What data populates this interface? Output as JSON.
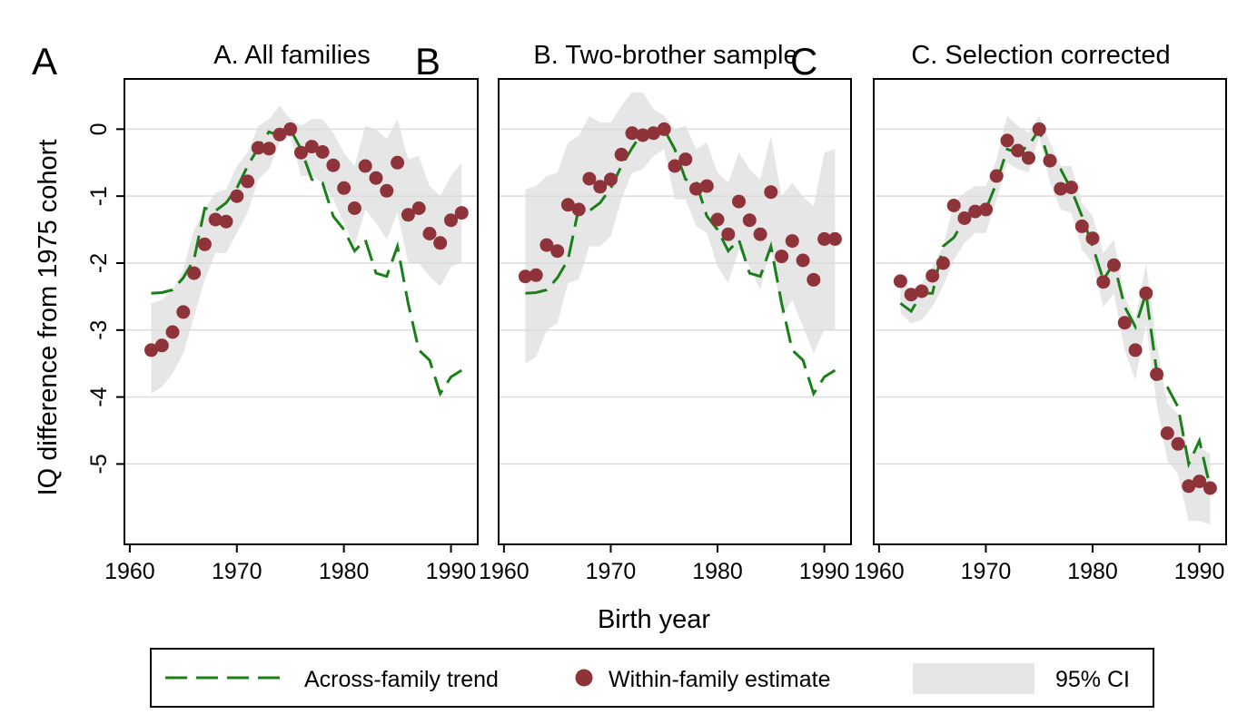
{
  "figure": {
    "ylabel": "IQ difference from 1975 cohort",
    "xlabel": "Birth year",
    "ylim": [
      -6.2,
      0.75
    ],
    "xlim": [
      1959.5,
      1992.5
    ],
    "yticks": [
      0,
      -1,
      -2,
      -3,
      -4,
      -5
    ],
    "ytick_labels": [
      "0",
      "-1",
      "-2",
      "-3",
      "-4",
      "-5"
    ],
    "xticks": [
      1960,
      1970,
      1980,
      1990
    ],
    "xtick_labels": [
      "1960",
      "1970",
      "1980",
      "1990"
    ],
    "grid": "horizontal",
    "colors": {
      "trend": "#1a7f1a",
      "dots": "#8e3339",
      "ci": "#e6e6e6",
      "grid": "#dcdcdc"
    }
  },
  "legend": {
    "placement": "bottom",
    "items": [
      {
        "label": "Across-family trend",
        "symbol": "dashed-line"
      },
      {
        "label": "Within-family estimate",
        "symbol": "dot"
      },
      {
        "label": "95% CI",
        "symbol": "shaded-band"
      }
    ]
  },
  "chart_data": [
    {
      "type": "line",
      "panel_letter": "A",
      "title": "A. All families",
      "x": [
        1962,
        1963,
        1964,
        1965,
        1966,
        1967,
        1968,
        1969,
        1970,
        1971,
        1972,
        1973,
        1974,
        1975,
        1976,
        1977,
        1978,
        1979,
        1980,
        1981,
        1982,
        1983,
        1984,
        1985,
        1986,
        1987,
        1988,
        1989,
        1990,
        1991
      ],
      "series": [
        {
          "name": "Across-family trend",
          "values": [
            -2.45,
            -2.44,
            -2.4,
            -2.22,
            -1.95,
            -1.18,
            -1.22,
            -1.1,
            -0.88,
            -0.55,
            -0.28,
            -0.04,
            -0.1,
            0,
            -0.3,
            -0.75,
            -0.8,
            -1.3,
            -1.5,
            -1.82,
            -1.65,
            -2.15,
            -2.2,
            -1.75,
            -2.6,
            -3.3,
            -3.45,
            -3.95,
            -3.7,
            -3.6
          ]
        },
        {
          "name": "Within-family estimate",
          "values": [
            -3.3,
            -3.23,
            -3.03,
            -2.73,
            -2.15,
            -1.72,
            -1.35,
            -1.38,
            -1.0,
            -0.78,
            -0.28,
            -0.29,
            -0.08,
            0,
            -0.35,
            -0.26,
            -0.34,
            -0.54,
            -0.88,
            -1.18,
            -0.55,
            -0.73,
            -0.92,
            -0.5,
            -1.28,
            -1.18,
            -1.56,
            -1.7,
            -1.36,
            -1.25
          ]
        },
        {
          "name": "95% CI",
          "lower": [
            -3.95,
            -3.85,
            -3.65,
            -3.35,
            -2.8,
            -2.25,
            -1.85,
            -1.85,
            -1.55,
            -1.25,
            -0.75,
            -0.6,
            -0.2,
            -0.1,
            -0.7,
            -0.7,
            -0.8,
            -1.05,
            -1.4,
            -1.75,
            -1.2,
            -1.4,
            -1.65,
            -1.25,
            -2.0,
            -2.0,
            -2.2,
            -2.35,
            -2.05,
            -2.0
          ],
          "upper": [
            -2.6,
            -2.55,
            -2.4,
            -2.1,
            -1.5,
            -1.2,
            -0.95,
            -0.9,
            -0.55,
            -0.35,
            0.05,
            0.15,
            0.35,
            0.15,
            0.05,
            0.15,
            0.15,
            -0.05,
            -0.35,
            -0.55,
            0.05,
            0.0,
            -0.15,
            0.15,
            -0.45,
            -0.4,
            -0.85,
            -1.0,
            -0.7,
            -0.5
          ]
        }
      ]
    },
    {
      "type": "line",
      "panel_letter": "B",
      "title": "B. Two-brother sample",
      "x": [
        1962,
        1963,
        1964,
        1965,
        1966,
        1967,
        1968,
        1969,
        1970,
        1971,
        1972,
        1973,
        1974,
        1975,
        1976,
        1977,
        1978,
        1979,
        1980,
        1981,
        1982,
        1983,
        1984,
        1985,
        1986,
        1987,
        1988,
        1989,
        1990,
        1991
      ],
      "series": [
        {
          "name": "Across-family trend",
          "values": [
            -2.45,
            -2.44,
            -2.4,
            -2.22,
            -1.95,
            -1.18,
            -1.22,
            -1.1,
            -0.88,
            -0.55,
            -0.28,
            -0.04,
            -0.1,
            0,
            -0.3,
            -0.75,
            -0.8,
            -1.3,
            -1.5,
            -1.82,
            -1.65,
            -2.15,
            -2.2,
            -1.75,
            -2.6,
            -3.3,
            -3.45,
            -3.95,
            -3.7,
            -3.6
          ]
        },
        {
          "name": "Within-family estimate",
          "values": [
            -2.2,
            -2.18,
            -1.73,
            -1.82,
            -1.13,
            -1.2,
            -0.74,
            -0.86,
            -0.75,
            -0.38,
            -0.06,
            -0.09,
            -0.06,
            0,
            -0.55,
            -0.45,
            -0.89,
            -0.85,
            -1.35,
            -1.57,
            -1.08,
            -1.36,
            -1.57,
            -0.94,
            -1.9,
            -1.67,
            -1.96,
            -2.25,
            -1.64,
            -1.64
          ]
        },
        {
          "name": "95% CI",
          "lower": [
            -3.5,
            -3.4,
            -3.0,
            -2.9,
            -2.3,
            -2.25,
            -1.75,
            -1.75,
            -1.6,
            -1.05,
            -0.65,
            -0.6,
            -0.4,
            -0.3,
            -1.05,
            -1.05,
            -1.45,
            -1.55,
            -2.05,
            -2.3,
            -1.8,
            -2.05,
            -2.4,
            -1.75,
            -2.8,
            -2.55,
            -2.95,
            -3.35,
            -3.0,
            -3.0
          ]
        },
        {
          "name": "95% CI",
          "upper": [
            -0.9,
            -0.85,
            -0.7,
            -0.65,
            -0.2,
            -0.1,
            0.2,
            0.1,
            0.1,
            0.35,
            0.55,
            0.55,
            0.3,
            0.2,
            0.0,
            0.05,
            -0.3,
            -0.2,
            -0.65,
            -0.8,
            -0.35,
            -0.6,
            -0.75,
            -0.1,
            -1.0,
            -0.8,
            -1.0,
            -1.15,
            -0.35,
            -0.3
          ]
        }
      ]
    },
    {
      "type": "line",
      "panel_letter": "C",
      "title": "C. Selection corrected",
      "x": [
        1962,
        1963,
        1964,
        1965,
        1966,
        1967,
        1968,
        1969,
        1970,
        1971,
        1972,
        1973,
        1974,
        1975,
        1976,
        1977,
        1978,
        1979,
        1980,
        1981,
        1982,
        1983,
        1984,
        1985,
        1986,
        1987,
        1988,
        1989,
        1990,
        1991
      ],
      "series": [
        {
          "name": "Across-family trend",
          "values": [
            -2.6,
            -2.72,
            -2.45,
            -2.45,
            -1.75,
            -1.62,
            -1.35,
            -1.2,
            -1.2,
            -0.8,
            -0.3,
            -0.35,
            -0.25,
            0,
            -0.52,
            -0.6,
            -0.9,
            -1.3,
            -1.75,
            -2.25,
            -2.0,
            -2.65,
            -2.95,
            -2.45,
            -3.62,
            -3.85,
            -4.15,
            -5.0,
            -4.65,
            -5.35
          ]
        },
        {
          "name": "Within-family estimate",
          "values": [
            -2.27,
            -2.47,
            -2.42,
            -2.19,
            -2.0,
            -1.14,
            -1.33,
            -1.23,
            -1.2,
            -0.7,
            -0.17,
            -0.32,
            -0.43,
            0,
            -0.47,
            -0.89,
            -0.87,
            -1.45,
            -1.63,
            -2.28,
            -2.03,
            -2.89,
            -3.3,
            -2.45,
            -3.66,
            -4.54,
            -4.7,
            -5.33,
            -5.26,
            -5.36
          ]
        },
        {
          "name": "95% CI",
          "lower": [
            -2.75,
            -2.9,
            -2.85,
            -2.65,
            -2.35,
            -1.95,
            -1.7,
            -1.55,
            -1.55,
            -1.05,
            -0.5,
            -0.6,
            -0.65,
            -0.1,
            -0.8,
            -1.2,
            -1.25,
            -1.8,
            -2.0,
            -2.65,
            -2.45,
            -3.3,
            -3.75,
            -2.9,
            -4.1,
            -4.95,
            -5.15,
            -5.85,
            -5.85,
            -5.9
          ]
        },
        {
          "name": "95% CI",
          "upper": [
            -2.25,
            -2.4,
            -2.3,
            -2.05,
            -1.75,
            -1.1,
            -0.95,
            -0.85,
            -0.85,
            -0.45,
            0.2,
            0.05,
            -0.05,
            0.2,
            -0.2,
            -0.55,
            -0.55,
            -1.1,
            -1.3,
            -1.85,
            -1.65,
            -2.5,
            -2.85,
            -2.0,
            -3.2,
            -4.1,
            -4.25,
            -4.85,
            -4.75,
            -4.85
          ]
        }
      ]
    }
  ]
}
